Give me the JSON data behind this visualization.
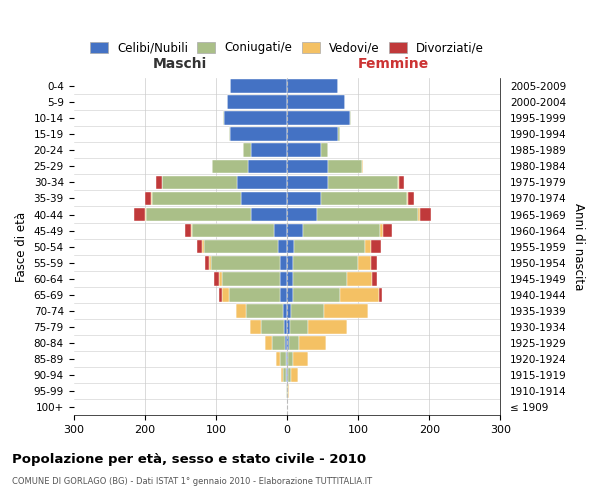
{
  "age_groups": [
    "100+",
    "95-99",
    "90-94",
    "85-89",
    "80-84",
    "75-79",
    "70-74",
    "65-69",
    "60-64",
    "55-59",
    "50-54",
    "45-49",
    "40-44",
    "35-39",
    "30-34",
    "25-29",
    "20-24",
    "15-19",
    "10-14",
    "5-9",
    "0-4"
  ],
  "birth_years": [
    "≤ 1909",
    "1910-1914",
    "1915-1919",
    "1920-1924",
    "1925-1929",
    "1930-1934",
    "1935-1939",
    "1940-1944",
    "1945-1949",
    "1950-1954",
    "1955-1959",
    "1960-1964",
    "1965-1969",
    "1970-1974",
    "1975-1979",
    "1980-1984",
    "1985-1989",
    "1990-1994",
    "1995-1999",
    "2000-2004",
    "2005-2009"
  ],
  "males_celibi": [
    0,
    0,
    2,
    2,
    3,
    4,
    6,
    10,
    10,
    10,
    12,
    18,
    50,
    65,
    70,
    55,
    50,
    80,
    88,
    85,
    80
  ],
  "males_coniugati": [
    0,
    1,
    4,
    8,
    18,
    32,
    52,
    72,
    82,
    97,
    105,
    115,
    148,
    125,
    105,
    50,
    12,
    2,
    2,
    0,
    0
  ],
  "males_vedovi": [
    0,
    0,
    2,
    6,
    10,
    16,
    14,
    10,
    4,
    3,
    2,
    2,
    2,
    1,
    1,
    1,
    0,
    0,
    0,
    0,
    0
  ],
  "males_divorziati": [
    0,
    0,
    0,
    0,
    0,
    0,
    0,
    3,
    7,
    5,
    8,
    8,
    15,
    8,
    8,
    0,
    0,
    0,
    0,
    0,
    0
  ],
  "females_nubili": [
    0,
    0,
    2,
    2,
    3,
    4,
    6,
    8,
    8,
    8,
    10,
    22,
    42,
    48,
    58,
    58,
    48,
    72,
    88,
    82,
    72
  ],
  "females_coniugate": [
    0,
    1,
    3,
    6,
    14,
    26,
    46,
    66,
    76,
    92,
    100,
    108,
    142,
    120,
    98,
    48,
    10,
    2,
    2,
    0,
    0
  ],
  "females_vedove": [
    0,
    2,
    10,
    22,
    38,
    55,
    62,
    55,
    35,
    18,
    8,
    5,
    3,
    2,
    1,
    1,
    0,
    0,
    0,
    0,
    0
  ],
  "females_divorziate": [
    0,
    0,
    0,
    0,
    0,
    0,
    0,
    4,
    7,
    8,
    14,
    12,
    15,
    8,
    7,
    0,
    0,
    0,
    0,
    0,
    0
  ],
  "color_celibi": "#4472C4",
  "color_coniugati": "#AABF88",
  "color_vedovi": "#F4C164",
  "color_divorziati": "#C0393A",
  "legend_labels": [
    "Celibi/Nubili",
    "Coniugati/e",
    "Vedovi/e",
    "Divorziati/e"
  ],
  "title": "Popolazione per età, sesso e stato civile - 2010",
  "subtitle": "COMUNE DI GORLAGO (BG) - Dati ISTAT 1° gennaio 2010 - Elaborazione TUTTITALIA.IT",
  "label_maschi": "Maschi",
  "label_femmine": "Femmine",
  "ylabel_left": "Fasce di età",
  "ylabel_right": "Anni di nascita",
  "xlim": 300,
  "bg_color": "#FFFFFF",
  "grid_color": "#CCCCCC",
  "femmine_color": "#CC3333"
}
